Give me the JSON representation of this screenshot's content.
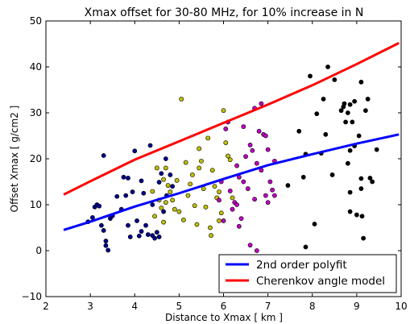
{
  "chart_data": {
    "type": "scatter",
    "title": "Xmax offset for 30-80 MHz, for 10% increase in N",
    "xlabel": "Distance to Xmax [ km ]",
    "ylabel": "Offset Xmax [ g/cm2 ]",
    "xlim": [
      2,
      10
    ],
    "ylim": [
      -10,
      50
    ],
    "xticks": [
      "2",
      "3",
      "4",
      "5",
      "6",
      "7",
      "8",
      "9",
      "10"
    ],
    "yticks": [
      "−10",
      "0",
      "10",
      "20",
      "30",
      "40",
      "50"
    ],
    "grid": false,
    "legend_position": "bottom-right",
    "lines": [
      {
        "name": "2nd order polyfit",
        "color": "#0000ff",
        "x": [
          2.4,
          3.0,
          4.0,
          5.0,
          6.0,
          7.0,
          8.0,
          9.0,
          9.95
        ],
        "y": [
          4.5,
          6.3,
          9.6,
          12.5,
          15.6,
          18.6,
          21.0,
          23.3,
          25.3
        ]
      },
      {
        "name": "Cherenkov angle model",
        "color": "#ff0000",
        "x": [
          2.4,
          3.0,
          4.0,
          5.0,
          6.0,
          7.0,
          8.0,
          9.0,
          9.95
        ],
        "y": [
          12.2,
          15.1,
          19.8,
          23.8,
          27.8,
          31.8,
          36.0,
          40.6,
          45.2
        ]
      }
    ],
    "series": [
      {
        "color": "#00008b",
        "points": [
          [
            2.95,
            6.3
          ],
          [
            3.05,
            7.2
          ],
          [
            3.1,
            9.5
          ],
          [
            3.15,
            10.0
          ],
          [
            3.2,
            9.7
          ],
          [
            3.25,
            5.5
          ],
          [
            3.3,
            4.4
          ],
          [
            3.3,
            20.7
          ],
          [
            3.35,
            2.1
          ],
          [
            3.35,
            1.1
          ],
          [
            3.4,
            0.1
          ],
          [
            3.45,
            7.0
          ],
          [
            3.5,
            7.6
          ],
          [
            3.6,
            11.8
          ],
          [
            3.7,
            9.0
          ],
          [
            3.75,
            16.0
          ],
          [
            3.8,
            12.0
          ],
          [
            3.85,
            15.8
          ],
          [
            3.85,
            5.5
          ],
          [
            3.9,
            3.0
          ],
          [
            3.95,
            12.8
          ],
          [
            4.0,
            21.7
          ],
          [
            4.05,
            6.5
          ],
          [
            4.1,
            3.2
          ],
          [
            4.15,
            15.2
          ],
          [
            4.15,
            4.2
          ],
          [
            4.2,
            12.5
          ],
          [
            4.25,
            5.5
          ],
          [
            4.3,
            3.5
          ],
          [
            4.35,
            22.9
          ],
          [
            4.4,
            10.0
          ],
          [
            4.4,
            3.3
          ],
          [
            4.45,
            2.7
          ],
          [
            4.5,
            4.0
          ],
          [
            4.55,
            3.0
          ],
          [
            4.55,
            14.9
          ],
          [
            4.6,
            16.8
          ],
          [
            4.65,
            8.5
          ],
          [
            4.7,
            20.0
          ],
          [
            4.72,
            12.0
          ],
          [
            4.8,
            16.5
          ],
          [
            4.85,
            14.0
          ]
        ]
      },
      {
        "color": "#bfbf00",
        "points": [
          [
            4.4,
            12.9
          ],
          [
            4.45,
            7.5
          ],
          [
            4.5,
            18.0
          ],
          [
            4.55,
            11.0
          ],
          [
            4.6,
            9.3
          ],
          [
            4.65,
            15.5
          ],
          [
            4.65,
            6.2
          ],
          [
            4.7,
            10.5
          ],
          [
            4.7,
            18.0
          ],
          [
            4.75,
            14.2
          ],
          [
            4.8,
            12.8
          ],
          [
            4.85,
            11.0
          ],
          [
            4.9,
            9.0
          ],
          [
            4.95,
            15.3
          ],
          [
            5.0,
            8.5
          ],
          [
            5.05,
            33.0
          ],
          [
            5.1,
            6.7
          ],
          [
            5.15,
            19.2
          ],
          [
            5.2,
            12.0
          ],
          [
            5.25,
            14.5
          ],
          [
            5.3,
            16.5
          ],
          [
            5.35,
            9.8
          ],
          [
            5.4,
            5.7
          ],
          [
            5.45,
            22.2
          ],
          [
            5.45,
            18.0
          ],
          [
            5.5,
            19.5
          ],
          [
            5.55,
            13.5
          ],
          [
            5.6,
            9.5
          ],
          [
            5.65,
            24.5
          ],
          [
            5.7,
            5.0
          ],
          [
            5.72,
            3.3
          ],
          [
            5.75,
            17.5
          ],
          [
            5.8,
            14.0
          ],
          [
            5.85,
            11.5
          ],
          [
            5.9,
            12.8
          ],
          [
            5.9,
            6.5
          ],
          [
            5.95,
            8.2
          ],
          [
            6.0,
            30.5
          ],
          [
            6.05,
            23.5
          ],
          [
            6.1,
            20.6
          ],
          [
            6.15,
            19.8
          ],
          [
            6.2,
            11.5
          ]
        ]
      },
      {
        "color": "#bf00bf",
        "points": [
          [
            5.9,
            11.0
          ],
          [
            5.95,
            15.0
          ],
          [
            6.0,
            6.5
          ],
          [
            6.05,
            26.5
          ],
          [
            6.1,
            28.0
          ],
          [
            6.15,
            13.0
          ],
          [
            6.2,
            9.0
          ],
          [
            6.25,
            10.5
          ],
          [
            6.3,
            18.5
          ],
          [
            6.35,
            16.0
          ],
          [
            6.35,
            5.3
          ],
          [
            6.4,
            7.0
          ],
          [
            6.45,
            15.0
          ],
          [
            6.5,
            20.5
          ],
          [
            6.55,
            13.5
          ],
          [
            6.6,
            1.2
          ],
          [
            6.6,
            23.0
          ],
          [
            6.65,
            21.8
          ],
          [
            6.7,
            31.0
          ],
          [
            6.7,
            11.2
          ],
          [
            6.75,
            19.0
          ],
          [
            6.75,
            0.0
          ],
          [
            6.8,
            26.0
          ],
          [
            6.85,
            32.0
          ],
          [
            6.85,
            17.5
          ],
          [
            6.9,
            25.3
          ],
          [
            6.95,
            25.0
          ],
          [
            6.95,
            12.0
          ],
          [
            7.0,
            22.0
          ],
          [
            7.0,
            10.5
          ],
          [
            7.05,
            15.0
          ],
          [
            7.1,
            13.2
          ],
          [
            7.15,
            19.5
          ],
          [
            7.15,
            12.0
          ],
          [
            6.45,
            27.0
          ],
          [
            6.3,
            10.0
          ]
        ]
      },
      {
        "color": "#000000",
        "points": [
          [
            7.45,
            14.2
          ],
          [
            7.7,
            26.0
          ],
          [
            7.8,
            16.0
          ],
          [
            7.85,
            21.0
          ],
          [
            7.85,
            0.8
          ],
          [
            7.95,
            38.0
          ],
          [
            8.05,
            5.8
          ],
          [
            8.1,
            29.8
          ],
          [
            8.2,
            21.2
          ],
          [
            8.25,
            33.0
          ],
          [
            8.3,
            25.3
          ],
          [
            8.35,
            40.0
          ],
          [
            8.45,
            16.5
          ],
          [
            8.5,
            37.2
          ],
          [
            8.65,
            30.5
          ],
          [
            8.7,
            31.3
          ],
          [
            8.72,
            32.0
          ],
          [
            8.75,
            28.0
          ],
          [
            8.8,
            30.0
          ],
          [
            8.8,
            19.0
          ],
          [
            8.85,
            8.5
          ],
          [
            8.85,
            21.8
          ],
          [
            8.85,
            12.7
          ],
          [
            8.9,
            28.0
          ],
          [
            8.95,
            22.8
          ],
          [
            9.0,
            7.8
          ],
          [
            9.05,
            25.0
          ],
          [
            9.1,
            36.7
          ],
          [
            9.1,
            15.7
          ],
          [
            9.1,
            13.5
          ],
          [
            9.12,
            7.5
          ],
          [
            9.15,
            2.7
          ],
          [
            9.2,
            30.5
          ],
          [
            9.25,
            33.0
          ],
          [
            9.3,
            15.8
          ],
          [
            9.35,
            15.0
          ],
          [
            9.45,
            22.0
          ],
          [
            8.95,
            32.5
          ],
          [
            8.85,
            31.8
          ]
        ]
      }
    ]
  }
}
